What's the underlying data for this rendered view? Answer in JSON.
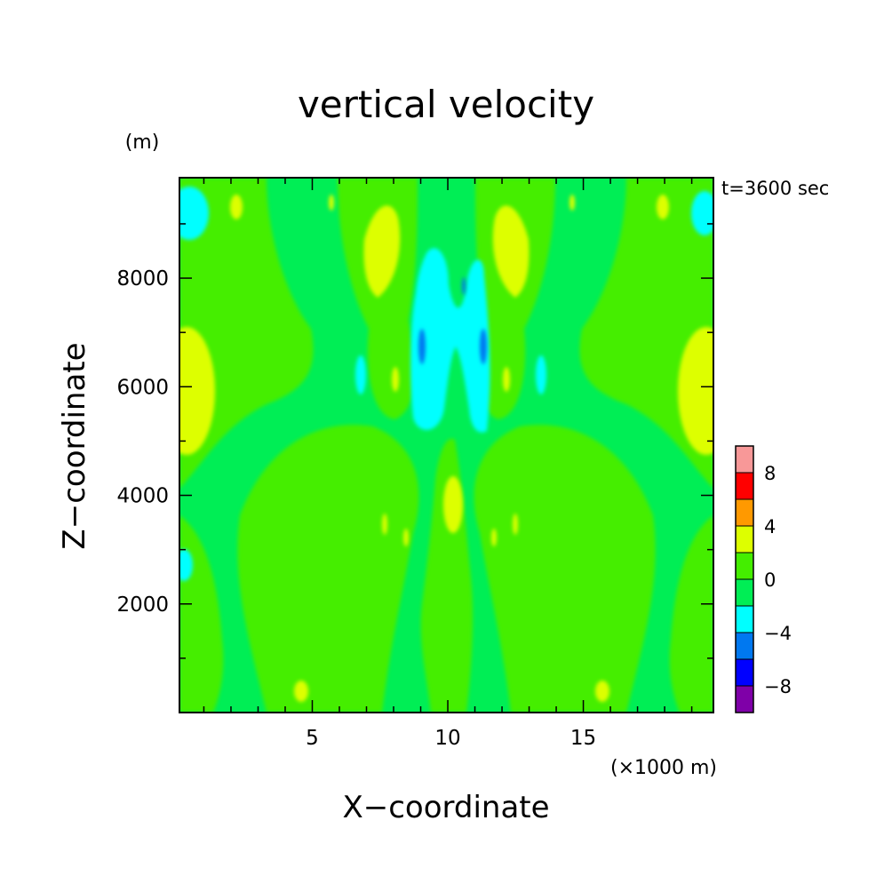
{
  "chart_data": {
    "type": "heatmap",
    "title": "vertical velocity",
    "xlabel": "X−coordinate",
    "ylabel": "Z−coordinate",
    "x_unit": "(×1000 m)",
    "y_unit": "(m)",
    "time_label": "t=3600 sec",
    "xlim": [
      0.1,
      19.8
    ],
    "ylim": [
      0,
      9850
    ],
    "x_ticks": [
      5,
      10,
      15
    ],
    "y_ticks": [
      2000,
      4000,
      6000,
      8000
    ],
    "colorbar": {
      "levels": [
        -10,
        -8,
        -6,
        -4,
        -2,
        0,
        2,
        4,
        6,
        8,
        10
      ],
      "colors": [
        "#7f00a8",
        "#0000ff",
        "#0078f0",
        "#00ffff",
        "#00ee55",
        "#44ee00",
        "#ddff00",
        "#ff9900",
        "#ff0000",
        "#f89898"
      ],
      "tick_values": [
        -8,
        -4,
        0,
        4,
        8
      ]
    },
    "field": {
      "background_value": 0,
      "features": [
        {
          "value": -3,
          "x": 0.8,
          "z": 9300
        },
        {
          "value": -3,
          "x": 19.3,
          "z": 9300
        },
        {
          "value": -3,
          "x": 0.3,
          "z": 2700
        },
        {
          "value": 3,
          "x": 0.8,
          "z": 6000
        },
        {
          "value": 3,
          "x": 19.3,
          "z": 6000
        },
        {
          "value": -3,
          "x": 9.3,
          "z": 7000
        },
        {
          "value": -3,
          "x": 11.2,
          "z": 7000
        },
        {
          "value": -5,
          "x": 9.1,
          "z": 6500
        },
        {
          "value": -5,
          "x": 11.4,
          "z": 6700
        },
        {
          "value": 3,
          "x": 10.2,
          "z": 4000
        },
        {
          "value": 3,
          "x": 7.8,
          "z": 8700
        },
        {
          "value": 3,
          "x": 12.6,
          "z": 8700
        },
        {
          "value": -3,
          "x": 6.8,
          "z": 6300
        },
        {
          "value": -3,
          "x": 13.6,
          "z": 6300
        },
        {
          "value": 3,
          "x": 4.8,
          "z": 400
        },
        {
          "value": 3,
          "x": 15.7,
          "z": 400
        }
      ]
    }
  }
}
